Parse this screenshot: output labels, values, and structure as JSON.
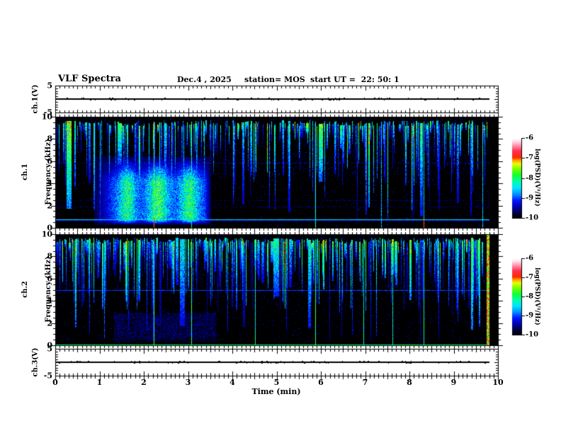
{
  "header": {
    "title": "VLF Spectra",
    "date": "Dec.4 , 2025",
    "station": "station= MOS",
    "start_ut": "start UT =  22: 50: 1"
  },
  "labels": {
    "ch1v": "ch.1(V)",
    "spec1_ch": "ch.1",
    "spec2_ch": "ch.2",
    "freq": "Frequency (kHz)",
    "ch3v": "ch.3(V)"
  },
  "chart_data": {
    "type": "heatmap",
    "title": "VLF Spectra",
    "x": {
      "label": "Time (min)",
      "min": 0,
      "max": 10,
      "major_ticks": [
        0,
        1,
        2,
        3,
        4,
        5,
        6,
        7,
        8,
        9,
        10
      ],
      "minor_tick_step": 0.1,
      "data_end_min": 9.8
    },
    "colorbar": {
      "label": "log(PSD)(V²/Hz)",
      "min": -10,
      "max": -6,
      "ticks": [
        -6,
        -7,
        -8,
        -9,
        -10
      ]
    },
    "colormap_stops": [
      [
        0.0,
        "#000000"
      ],
      [
        0.06,
        "#000035"
      ],
      [
        0.14,
        "#0000a8"
      ],
      [
        0.22,
        "#0014ff"
      ],
      [
        0.3,
        "#0090ff"
      ],
      [
        0.38,
        "#00e4ff"
      ],
      [
        0.46,
        "#00ffa8"
      ],
      [
        0.54,
        "#12ff2e"
      ],
      [
        0.62,
        "#7cff00"
      ],
      [
        0.68,
        "#e8ff00"
      ],
      [
        0.72,
        "#ffa800"
      ],
      [
        0.76,
        "#ff2a00"
      ],
      [
        0.84,
        "#ff2e50"
      ],
      [
        0.9,
        "#ff85a2"
      ],
      [
        0.96,
        "#ffdbe6"
      ],
      [
        1.0,
        "#ffffff"
      ]
    ],
    "panels": [
      {
        "id": "ch1_voltage",
        "kind": "line",
        "label": "ch.1(V)",
        "y_min": -5,
        "y_max": 5,
        "y_ticks": [
          5,
          -5
        ],
        "trace": "flat near 0 V from 0 to 9.8 min"
      },
      {
        "id": "ch1_spectrogram",
        "kind": "spectrogram",
        "label": "ch.1 Frequency (kHz)",
        "y_min": 0,
        "y_max": 10,
        "y_ticks": [
          10,
          8,
          6,
          4,
          2,
          0
        ],
        "z_min": -10,
        "z_max": -6,
        "features": {
          "streak_density": 0.45,
          "quiet_zones": [
            [
              3.45,
              4.05
            ],
            [
              4.6,
              5.05
            ]
          ],
          "haze": {
            "t_range": [
              0.85,
              3.5
            ],
            "f_range": [
              0.3,
              6.5
            ],
            "cores": [
              1.6,
              2.3,
              3.0
            ]
          },
          "h_lines": [
            {
              "f_khz": 0.78,
              "level": -8.5,
              "solid": true
            },
            {
              "f_khz": 5.9,
              "level": -9.2,
              "solid": false
            },
            {
              "f_khz": 2.5,
              "level": -9.5,
              "solid": false
            },
            {
              "f_khz": 1.9,
              "level": -9.5,
              "solid": false
            }
          ],
          "v_lines": [
            {
              "t_min": 2.2,
              "level": -7.9,
              "hot_bottom": true
            },
            {
              "t_min": 3.05,
              "level": -8.0,
              "hot_bottom": false
            },
            {
              "t_min": 5.85,
              "level": -8.0,
              "hot_bottom": false
            },
            {
              "t_min": 7.35,
              "level": -8.7,
              "hot_bottom": false
            },
            {
              "t_min": 8.3,
              "level": -8.5,
              "hot_bottom": true
            },
            {
              "t_min": 9.63,
              "level": -8.6,
              "hot_bottom": false
            }
          ]
        }
      },
      {
        "id": "ch2_spectrogram",
        "kind": "spectrogram",
        "label": "ch.2 Frequency (kHz)",
        "y_min": 0,
        "y_max": 10,
        "y_ticks": [
          10,
          8,
          6,
          4,
          2,
          0
        ],
        "z_min": -10,
        "z_max": -6,
        "features": {
          "streak_density": 0.5,
          "quiet_zones": [],
          "haze": {
            "t_range": [
              1.3,
              3.6
            ],
            "f_range": [
              0.3,
              3.0
            ],
            "cores": [
              2.4
            ]
          },
          "h_lines": [
            {
              "f_khz": 5.0,
              "level": -9.0,
              "solid": true
            },
            {
              "f_khz": 0.08,
              "level": -8.0,
              "solid": true
            }
          ],
          "v_lines": [
            {
              "t_min": 2.2,
              "level": -8.0,
              "hot_bottom": false
            },
            {
              "t_min": 3.05,
              "level": -8.0,
              "hot_bottom": false
            },
            {
              "t_min": 4.5,
              "level": -8.3,
              "hot_bottom": false
            },
            {
              "t_min": 5.85,
              "level": -8.0,
              "hot_bottom": false
            },
            {
              "t_min": 6.95,
              "level": -8.3,
              "hot_bottom": false
            },
            {
              "t_min": 7.6,
              "level": -8.4,
              "hot_bottom": false
            },
            {
              "t_min": 8.3,
              "level": -8.2,
              "hot_bottom": false
            }
          ],
          "edge_strip": {
            "t_range": [
              9.72,
              9.79
            ]
          }
        }
      },
      {
        "id": "ch3_voltage",
        "kind": "line",
        "label": "ch.3(V)",
        "y_min": -5,
        "y_max": 5,
        "y_ticks": [
          5,
          -5
        ],
        "trace": "flat near 0 V from 0 to 9.8 min"
      }
    ]
  }
}
